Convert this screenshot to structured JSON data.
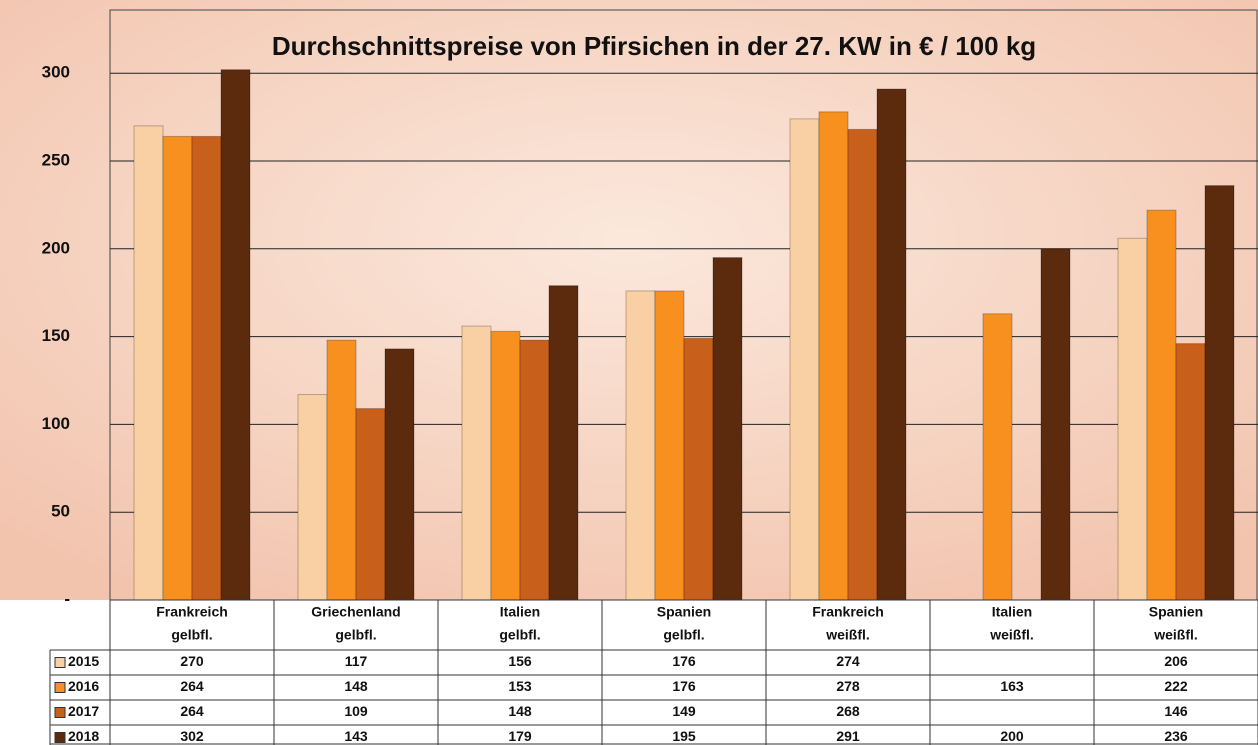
{
  "chart_data": {
    "type": "bar",
    "title": "Durchschnittspreise von Pfirsichen in der 27. KW in € / 100 kg",
    "categories": [
      [
        "Frankreich",
        "gelbfl."
      ],
      [
        "Griechenland",
        "gelbfl."
      ],
      [
        "Italien",
        "gelbfl."
      ],
      [
        "Spanien",
        "gelbfl."
      ],
      [
        "Frankreich",
        "weißfl."
      ],
      [
        "Italien",
        "weißfl."
      ],
      [
        "Spanien",
        "weißfl."
      ]
    ],
    "series": [
      {
        "name": "2015",
        "color": "#f9cfa4",
        "values": [
          270,
          117,
          156,
          176,
          274,
          null,
          206
        ]
      },
      {
        "name": "2016",
        "color": "#f7901e",
        "values": [
          264,
          148,
          153,
          176,
          278,
          163,
          222
        ]
      },
      {
        "name": "2017",
        "color": "#c8601c",
        "values": [
          264,
          109,
          148,
          149,
          268,
          null,
          146
        ]
      },
      {
        "name": "2018",
        "color": "#5c2a0c",
        "values": [
          302,
          143,
          179,
          195,
          291,
          200,
          236
        ]
      }
    ],
    "ylim": [
      0,
      336
    ],
    "yticks": [
      {
        "value": 0,
        "label": "-"
      },
      50,
      100,
      150,
      200,
      250,
      300
    ],
    "grid": true
  }
}
